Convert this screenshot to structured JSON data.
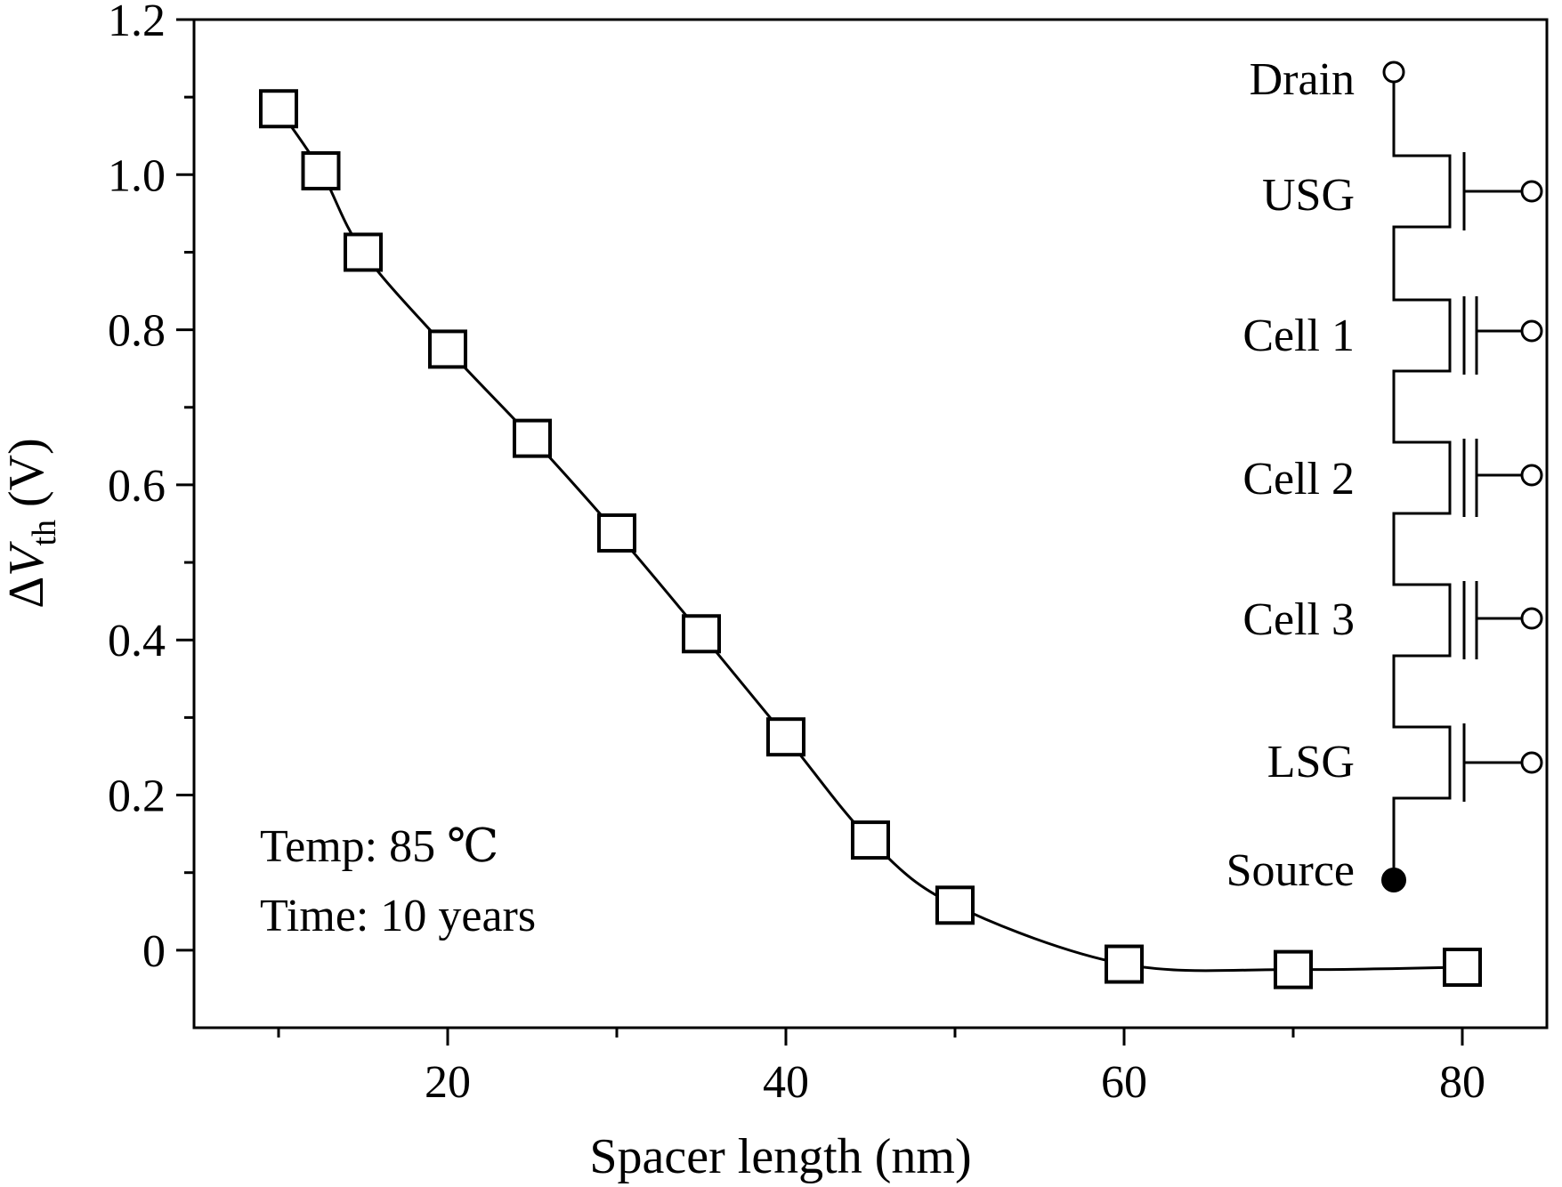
{
  "chart_data": {
    "type": "line",
    "xlabel": "Spacer length (nm)",
    "ylabel": {
      "prefix": "Δ",
      "var": "V",
      "sub": "th",
      "unit": " (V)"
    },
    "xlim": [
      5,
      85
    ],
    "ylim": [
      -0.1,
      1.2
    ],
    "xticks": [
      20,
      40,
      60,
      80
    ],
    "xminor": [
      10,
      30,
      50,
      70
    ],
    "yticks": [
      0,
      0.2,
      0.4,
      0.6,
      0.8,
      1.0,
      1.2
    ],
    "ytick_labels": [
      "0",
      "0.2",
      "0.4",
      "0.6",
      "0.8",
      "1.0",
      "1.2"
    ],
    "yminor": [
      0.1,
      0.3,
      0.5,
      0.7,
      0.9,
      1.1
    ],
    "series": [
      {
        "marker": "open-square",
        "x": [
          10,
          12.5,
          15,
          20,
          25,
          30,
          35,
          40,
          45,
          50,
          60,
          70,
          80
        ],
        "y": [
          1.085,
          1.005,
          0.9,
          0.775,
          0.66,
          0.538,
          0.408,
          0.275,
          0.142,
          0.058,
          -0.018,
          -0.025,
          -0.022
        ]
      }
    ],
    "annotations": [
      "Temp: 85 ℃",
      "Time: 10 years"
    ],
    "circuit": {
      "top_terminal": "Drain",
      "bottom_terminal": "Source",
      "transistors": [
        {
          "label": "USG",
          "type": "select"
        },
        {
          "label": "Cell 1",
          "type": "cell"
        },
        {
          "label": "Cell 2",
          "type": "cell"
        },
        {
          "label": "Cell 3",
          "type": "cell"
        },
        {
          "label": "LSG",
          "type": "select"
        }
      ]
    }
  }
}
